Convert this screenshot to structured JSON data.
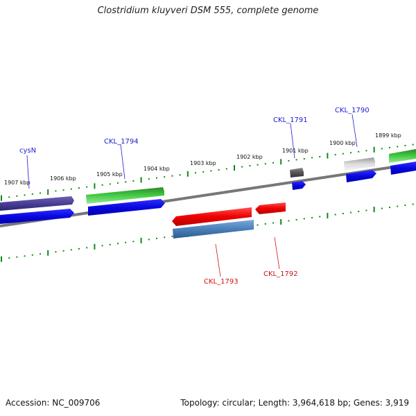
{
  "title": "Clostridium kluyveri DSM 555, complete genome",
  "footer": {
    "accession": "Accession: NC_009706",
    "stats": "Topology: circular; Length: 3,964,618 bp; Genes: 3,919"
  },
  "tick_labels": [
    "1907 kbp",
    "1906 kbp",
    "1905 kbp",
    "1904 kbp",
    "1903 kbp",
    "1902 kbp",
    "1901 kbp",
    "1900 kbp",
    "1899 kbp"
  ],
  "gene_labels": [
    "cysN",
    "CKL_1794",
    "CKL_1791",
    "CKL_1790",
    "CKL_1793",
    "CKL_1792"
  ],
  "colors": {
    "forward_label": "#1a1acc",
    "reverse_label": "#cc1111",
    "cds": "#1010ee",
    "tick": "#118811"
  }
}
